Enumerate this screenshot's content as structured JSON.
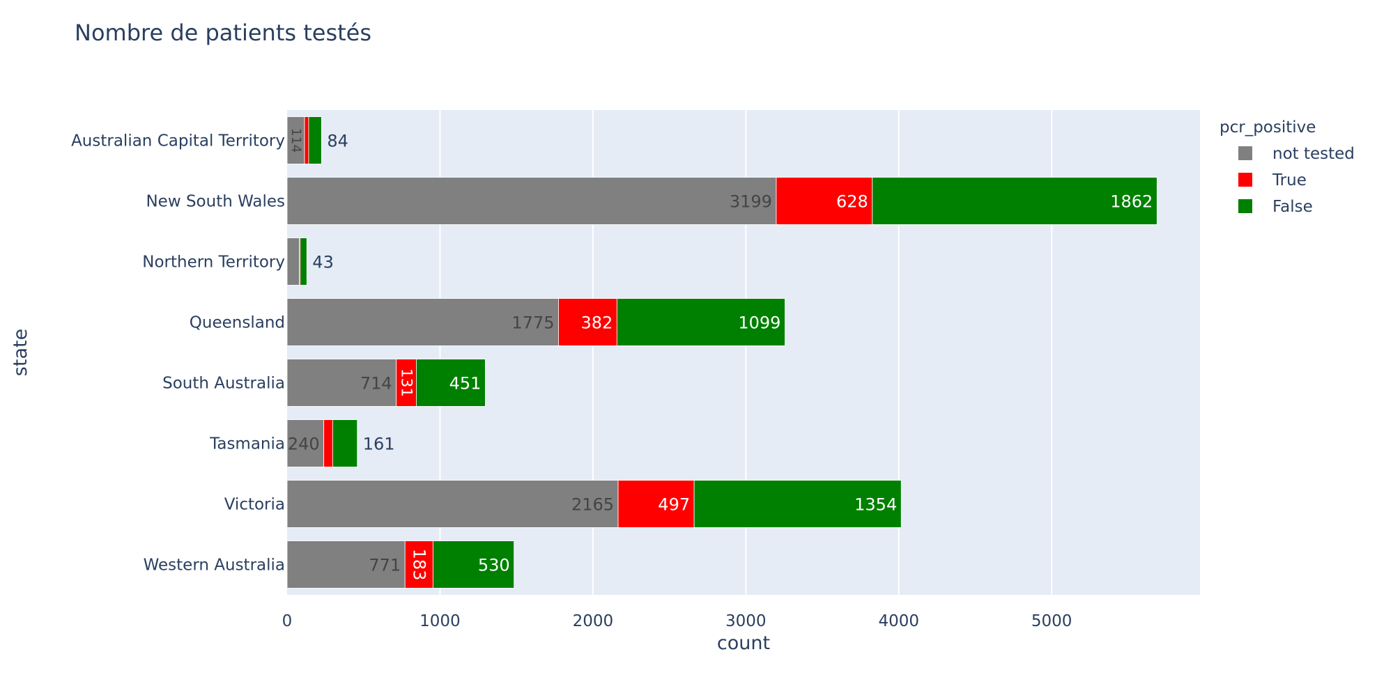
{
  "chart_data": {
    "type": "bar",
    "orientation": "horizontal",
    "barmode": "stack",
    "title": "Nombre de patients testés",
    "xlabel": "count",
    "ylabel": "state",
    "xlim": [
      0,
      5970
    ],
    "xticks": [
      0,
      1000,
      2000,
      3000,
      4000,
      5000
    ],
    "xtick_labels": [
      "0",
      "1000",
      "2000",
      "3000",
      "4000",
      "5000"
    ],
    "grid": true,
    "categories": [
      "Australian Capital Territory",
      "New South Wales",
      "Northern Territory",
      "Queensland",
      "South Australia",
      "Tasmania",
      "Victoria",
      "Western Australia"
    ],
    "legend": {
      "title": "pcr_positive",
      "position": "top-right"
    },
    "series": [
      {
        "name": "not tested",
        "color": "#808080",
        "values": [
          114,
          3199,
          80,
          1775,
          714,
          240,
          2165,
          771
        ],
        "labels": [
          "114",
          "3199",
          "",
          "1775",
          "714",
          "240",
          "2165",
          "771"
        ]
      },
      {
        "name": "True",
        "color": "#ff0000",
        "values": [
          27,
          628,
          6,
          382,
          131,
          58,
          497,
          183
        ],
        "labels": [
          "",
          "628",
          "",
          "382",
          "131",
          "",
          "497",
          "183"
        ]
      },
      {
        "name": "False",
        "color": "#008000",
        "values": [
          84,
          1862,
          43,
          1099,
          451,
          161,
          1354,
          530
        ],
        "labels": [
          "84",
          "1862",
          "43",
          "1099",
          "451",
          "161",
          "1354",
          "530"
        ]
      }
    ]
  }
}
